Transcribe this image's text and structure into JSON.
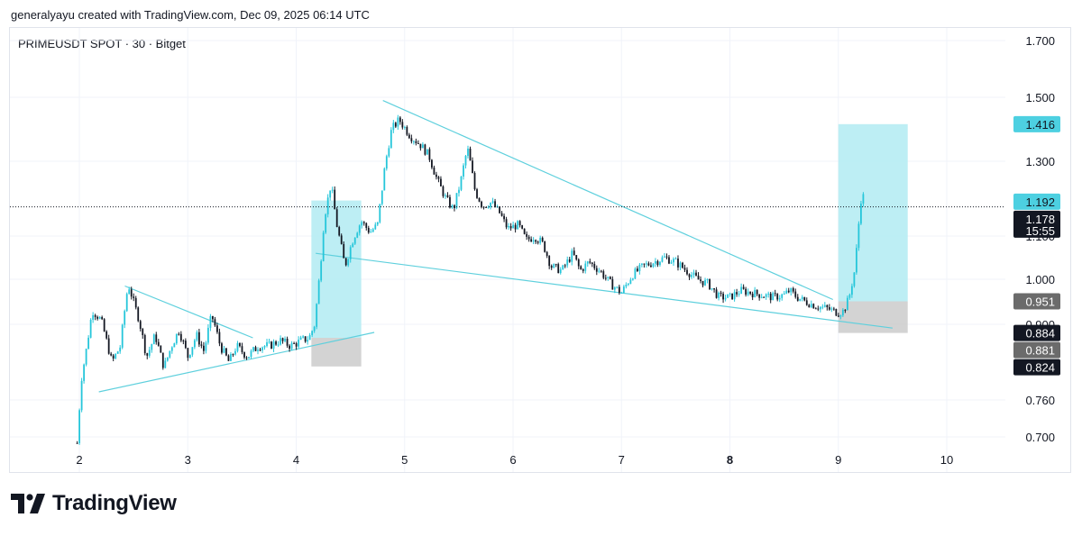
{
  "attribution": "generalyayu created with TradingView.com, Dec 09, 2025 06:14 UTC",
  "brand": "TradingView",
  "colors": {
    "up": "#26c6da",
    "down": "#131722",
    "trend": "#5fd0dd",
    "zone_profit": "#b2ebf2",
    "zone_loss": "#c8c8c8",
    "label_cyan": "#4dd0e1",
    "label_dark": "#131722",
    "label_gray": "#6b6b6b"
  },
  "chart_data": {
    "type": "candlestick",
    "title": "PRIMEUSDT SPOT · 30 · Bitget",
    "x_unit": "day",
    "x_ticks": [
      {
        "label": "2",
        "x": 2,
        "bold": false
      },
      {
        "label": "3",
        "x": 3,
        "bold": false
      },
      {
        "label": "4",
        "x": 4,
        "bold": false
      },
      {
        "label": "5",
        "x": 5,
        "bold": false
      },
      {
        "label": "6",
        "x": 6,
        "bold": false
      },
      {
        "label": "7",
        "x": 7,
        "bold": false
      },
      {
        "label": "8",
        "x": 8,
        "bold": true
      },
      {
        "label": "9",
        "x": 9,
        "bold": false
      },
      {
        "label": "10",
        "x": 10,
        "bold": false
      }
    ],
    "y_ticks": [
      "1.700",
      "1.500",
      "1.300",
      "1.100",
      "1.000",
      "0.900",
      "0.760",
      "0.700"
    ],
    "x_range": [
      1.35,
      10.55
    ],
    "price_path": [
      [
        1.98,
        0.69
      ],
      [
        2.02,
        0.8
      ],
      [
        2.07,
        0.86
      ],
      [
        2.12,
        0.93
      ],
      [
        2.2,
        0.91
      ],
      [
        2.3,
        0.83
      ],
      [
        2.38,
        0.86
      ],
      [
        2.45,
        0.99
      ],
      [
        2.5,
        0.95
      ],
      [
        2.55,
        0.91
      ],
      [
        2.62,
        0.84
      ],
      [
        2.7,
        0.88
      ],
      [
        2.78,
        0.82
      ],
      [
        2.85,
        0.86
      ],
      [
        2.92,
        0.89
      ],
      [
        3.0,
        0.84
      ],
      [
        3.08,
        0.88
      ],
      [
        3.15,
        0.85
      ],
      [
        3.22,
        0.92
      ],
      [
        3.3,
        0.86
      ],
      [
        3.38,
        0.83
      ],
      [
        3.45,
        0.86
      ],
      [
        3.55,
        0.84
      ],
      [
        3.65,
        0.86
      ],
      [
        3.75,
        0.86
      ],
      [
        3.85,
        0.87
      ],
      [
        3.95,
        0.86
      ],
      [
        4.05,
        0.87
      ],
      [
        4.12,
        0.875
      ],
      [
        4.17,
        0.9
      ],
      [
        4.22,
        1.02
      ],
      [
        4.26,
        1.15
      ],
      [
        4.32,
        1.24
      ],
      [
        4.38,
        1.12
      ],
      [
        4.45,
        1.03
      ],
      [
        4.52,
        1.09
      ],
      [
        4.6,
        1.14
      ],
      [
        4.68,
        1.11
      ],
      [
        4.75,
        1.13
      ],
      [
        4.82,
        1.29
      ],
      [
        4.88,
        1.4
      ],
      [
        4.95,
        1.43
      ],
      [
        5.05,
        1.38
      ],
      [
        5.15,
        1.35
      ],
      [
        5.22,
        1.32
      ],
      [
        5.3,
        1.25
      ],
      [
        5.38,
        1.2
      ],
      [
        5.45,
        1.17
      ],
      [
        5.52,
        1.25
      ],
      [
        5.58,
        1.34
      ],
      [
        5.65,
        1.22
      ],
      [
        5.72,
        1.18
      ],
      [
        5.8,
        1.19
      ],
      [
        5.88,
        1.16
      ],
      [
        5.95,
        1.12
      ],
      [
        6.05,
        1.13
      ],
      [
        6.12,
        1.09
      ],
      [
        6.2,
        1.1
      ],
      [
        6.28,
        1.08
      ],
      [
        6.35,
        1.03
      ],
      [
        6.45,
        1.02
      ],
      [
        6.55,
        1.06
      ],
      [
        6.62,
        1.02
      ],
      [
        6.7,
        1.04
      ],
      [
        6.8,
        1.02
      ],
      [
        6.9,
        0.99
      ],
      [
        7.0,
        0.97
      ],
      [
        7.1,
        1.01
      ],
      [
        7.2,
        1.03
      ],
      [
        7.3,
        1.04
      ],
      [
        7.4,
        1.05
      ],
      [
        7.5,
        1.04
      ],
      [
        7.6,
        1.02
      ],
      [
        7.7,
        1.0
      ],
      [
        7.8,
        0.99
      ],
      [
        7.9,
        0.96
      ],
      [
        8.0,
        0.96
      ],
      [
        8.1,
        0.975
      ],
      [
        8.2,
        0.97
      ],
      [
        8.3,
        0.965
      ],
      [
        8.4,
        0.96
      ],
      [
        8.5,
        0.965
      ],
      [
        8.55,
        0.975
      ],
      [
        8.62,
        0.96
      ],
      [
        8.7,
        0.95
      ],
      [
        8.8,
        0.94
      ],
      [
        8.9,
        0.935
      ],
      [
        9.0,
        0.925
      ],
      [
        9.05,
        0.93
      ],
      [
        9.1,
        0.96
      ],
      [
        9.15,
        1.02
      ],
      [
        9.18,
        1.1
      ],
      [
        9.2,
        1.18
      ],
      [
        9.22,
        1.22
      ],
      [
        9.24,
        1.19
      ]
    ],
    "trendlines": [
      {
        "from": [
          2.42,
          0.985
        ],
        "to": [
          3.6,
          0.875
        ]
      },
      {
        "from": [
          2.18,
          0.775
        ],
        "to": [
          4.72,
          0.885
        ]
      },
      {
        "from": [
          4.8,
          1.49
        ],
        "to": [
          8.95,
          0.955
        ]
      },
      {
        "from": [
          4.18,
          1.06
        ],
        "to": [
          9.5,
          0.893
        ]
      }
    ],
    "position_zones": [
      {
        "name": "long-position-1",
        "x_start": 4.14,
        "x_end": 4.6,
        "entry": 0.875,
        "target": 1.195,
        "stop": 0.822
      },
      {
        "name": "long-position-2",
        "x_start": 9.0,
        "x_end": 9.64,
        "entry": 0.951,
        "target": 1.416,
        "stop": 0.884
      }
    ],
    "last_price": 1.178,
    "price_labels": [
      {
        "text": "1.416",
        "value": 1.416,
        "style": "cyan"
      },
      {
        "text": "1.192",
        "value": 1.192,
        "style": "cyan"
      },
      {
        "text": "1.178",
        "sub": "15:55",
        "value": 1.178,
        "style": "dark"
      },
      {
        "text": "0.951",
        "value": 0.951,
        "style": "gray"
      },
      {
        "text": "0.884",
        "value": 0.884,
        "style": "dark"
      },
      {
        "text": "0.881",
        "value": 0.881,
        "style": "gray"
      },
      {
        "text": "0.824",
        "value": 0.824,
        "style": "dark"
      }
    ]
  }
}
